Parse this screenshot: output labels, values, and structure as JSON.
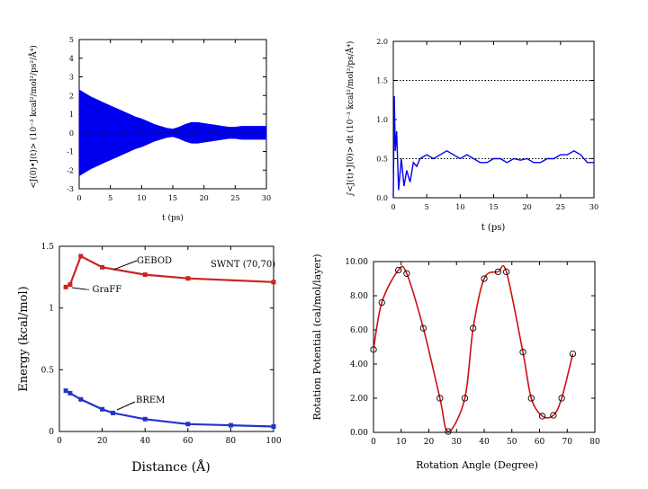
{
  "chart_data": [
    {
      "type": "line",
      "title": "",
      "xlabel": "t (ps)",
      "ylabel": "<J(0)•J(t)> (10⁻³ kcal²/mol²/ps²/Å⁴)",
      "xlim": [
        0,
        30
      ],
      "ylim": [
        -3,
        5
      ],
      "xticks": [
        0,
        5,
        10,
        15,
        20,
        25,
        30
      ],
      "yticks": [
        -3,
        -2,
        -1,
        0,
        1,
        2,
        3,
        4,
        5
      ],
      "grid": false,
      "series": [
        {
          "color": "#0000ee",
          "x": [
            0,
            1,
            2,
            3,
            4,
            5,
            6,
            7,
            8,
            9,
            10,
            11,
            12,
            13,
            14,
            15,
            16,
            17,
            18,
            19,
            20,
            21,
            22,
            23,
            24,
            25,
            26,
            27,
            28,
            29,
            30
          ],
          "upper": [
            2.3,
            2.1,
            1.9,
            1.75,
            1.6,
            1.45,
            1.3,
            1.15,
            1.0,
            0.85,
            0.75,
            0.6,
            0.45,
            0.35,
            0.25,
            0.2,
            0.3,
            0.45,
            0.55,
            0.55,
            0.5,
            0.45,
            0.4,
            0.35,
            0.3,
            0.3,
            0.35,
            0.35,
            0.35,
            0.35,
            0.35
          ],
          "lower": [
            -2.3,
            -2.1,
            -1.9,
            -1.75,
            -1.6,
            -1.45,
            -1.3,
            -1.15,
            -1.0,
            -0.85,
            -0.75,
            -0.6,
            -0.45,
            -0.35,
            -0.25,
            -0.2,
            -0.3,
            -0.45,
            -0.55,
            -0.55,
            -0.5,
            -0.45,
            -0.4,
            -0.35,
            -0.3,
            -0.3,
            -0.35,
            -0.35,
            -0.35,
            -0.35,
            -0.35
          ]
        }
      ]
    },
    {
      "type": "line",
      "title": "",
      "xlabel": "t (ps)",
      "ylabel": "∫<J(t)•J(0)> dt (10⁻³ kcal²/mol²/ps/Å⁴)",
      "xlim": [
        0,
        30
      ],
      "ylim": [
        0,
        2
      ],
      "xticks": [
        0,
        5,
        10,
        15,
        20,
        25,
        30
      ],
      "yticks": [
        "0.0",
        "0.5",
        "1.0",
        "1.5",
        "2.0"
      ],
      "reference_lines": [
        0.5,
        1.5
      ],
      "grid": false,
      "series": [
        {
          "color": "#0000ee",
          "x": [
            0,
            0.15,
            0.3,
            0.5,
            0.8,
            1.2,
            1.6,
            2,
            2.5,
            3,
            3.5,
            4,
            5,
            6,
            7,
            8,
            9,
            10,
            11,
            12,
            13,
            14,
            15,
            16,
            17,
            18,
            19,
            20,
            21,
            22,
            23,
            24,
            25,
            26,
            27,
            28,
            29,
            30
          ],
          "y": [
            0.0,
            1.3,
            0.6,
            0.85,
            0.1,
            0.5,
            0.15,
            0.35,
            0.2,
            0.45,
            0.4,
            0.5,
            0.55,
            0.5,
            0.55,
            0.6,
            0.55,
            0.5,
            0.55,
            0.5,
            0.45,
            0.45,
            0.5,
            0.5,
            0.45,
            0.5,
            0.48,
            0.5,
            0.45,
            0.45,
            0.5,
            0.5,
            0.55,
            0.55,
            0.6,
            0.55,
            0.45,
            0.45
          ]
        }
      ]
    },
    {
      "type": "line",
      "title": "",
      "xlabel": "Distance (Å)",
      "ylabel": "Energy (kcal/mol)",
      "xlim": [
        0,
        100
      ],
      "ylim": [
        0,
        1.5
      ],
      "xticks": [
        0,
        20,
        40,
        60,
        80,
        100
      ],
      "yticks": [
        "0",
        "0.5",
        "1",
        "1.5"
      ],
      "grid": false,
      "annotations": [
        "SWNT (70,70)"
      ],
      "series": [
        {
          "name": "GEBOD",
          "color": "#cc2222",
          "x": [
            3,
            5,
            10,
            20,
            40,
            60,
            100
          ],
          "y": [
            1.17,
            1.19,
            1.42,
            1.33,
            1.27,
            1.24,
            1.21
          ]
        },
        {
          "name": "GraFF",
          "color": "#cc2222",
          "x": [
            3,
            5
          ],
          "y": [
            1.17,
            1.19
          ]
        },
        {
          "name": "BREM",
          "color": "#2233cc",
          "x": [
            3,
            5,
            10,
            20,
            25,
            40,
            60,
            80,
            100
          ],
          "y": [
            0.33,
            0.31,
            0.26,
            0.18,
            0.15,
            0.1,
            0.06,
            0.05,
            0.04
          ]
        }
      ]
    },
    {
      "type": "line",
      "title": "",
      "xlabel": "Rotation Angle (Degree)",
      "ylabel": "Rotation Potential (cal/mol/layer)",
      "xlim": [
        0,
        80
      ],
      "ylim": [
        0,
        10
      ],
      "xticks": [
        0,
        10,
        20,
        30,
        40,
        50,
        60,
        70,
        80
      ],
      "yticks": [
        "0.00",
        "2.00",
        "4.00",
        "6.00",
        "8.00",
        "10.00"
      ],
      "grid": false,
      "series": [
        {
          "color": "#cc1111",
          "marker": "circle",
          "x": [
            0,
            3,
            9,
            12,
            18,
            24,
            27,
            33,
            36,
            40,
            45,
            48,
            54,
            57,
            61,
            65,
            68,
            72
          ],
          "y": [
            4.85,
            7.6,
            9.5,
            9.3,
            6.1,
            2.0,
            0.05,
            2.0,
            6.1,
            9.0,
            9.4,
            9.4,
            4.7,
            2.0,
            0.95,
            1.0,
            2.0,
            4.6
          ]
        }
      ]
    }
  ]
}
